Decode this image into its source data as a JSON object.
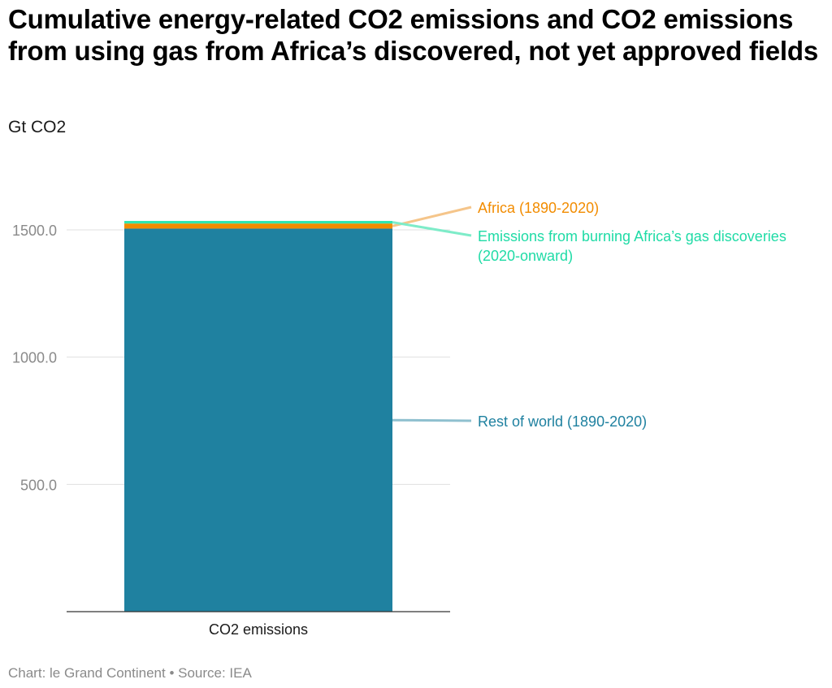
{
  "header": {
    "title": "Cumulative energy-related CO2 emissions and CO2 emissions from using gas from Africa’s discovered, not yet approved fields",
    "subtitle": "Gt CO2"
  },
  "footer": {
    "text": "Chart: le Grand Continent • Source: IEA"
  },
  "colors": {
    "rest_of_world": "#1f81a0",
    "africa": "#f28c00",
    "gas_discoveries": "#2ee6b0",
    "grid": "#e0e0e0",
    "axis": "#333333"
  },
  "chart_data": {
    "type": "bar",
    "stacked": true,
    "categories": [
      "CO2 emissions"
    ],
    "series": [
      {
        "name": "Rest of world (1890-2020)",
        "values": [
          1505
        ],
        "color": "#1f81a0"
      },
      {
        "name": "Africa (1890-2020)",
        "values": [
          20
        ],
        "color": "#f28c00"
      },
      {
        "name": "Emissions from burning Africa’s gas discoveries (2020-onward)",
        "values": [
          10
        ],
        "color": "#2ee6b0"
      }
    ],
    "series_label_lines": [
      [
        "Rest of world (1890-2020)"
      ],
      [
        "Africa (1890-2020)"
      ],
      [
        "Emissions from burning Africa’s gas discoveries",
        "(2020-onward)"
      ]
    ],
    "yticks": [
      500,
      1000,
      1500
    ],
    "ytick_labels": [
      "500.0",
      "1000.0",
      "1500.0"
    ],
    "ylim": [
      0,
      1500
    ],
    "grid": true,
    "legend": "direct labels on right"
  }
}
